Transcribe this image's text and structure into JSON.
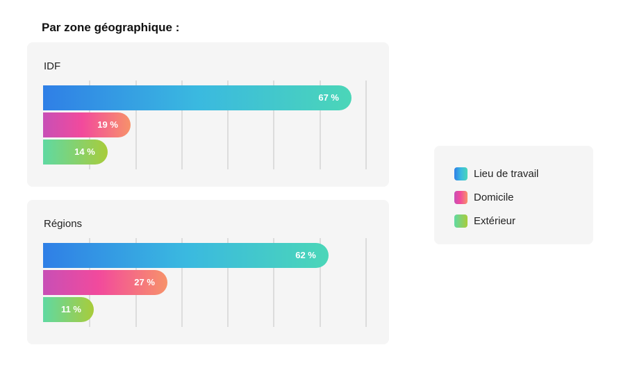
{
  "title": "Par zone géographique :",
  "legend": {
    "items": [
      {
        "label": "Lieu de travail"
      },
      {
        "label": "Domicile"
      },
      {
        "label": "Extérieur"
      }
    ]
  },
  "chart_data": [
    {
      "type": "bar",
      "orientation": "horizontal",
      "title": "IDF",
      "categories": [
        "Lieu de travail",
        "Domicile",
        "Extérieur"
      ],
      "values": [
        67,
        19,
        14
      ],
      "value_labels": [
        "67 %",
        "19 %",
        "14 %"
      ],
      "xlim": [
        0,
        70
      ],
      "grid": true
    },
    {
      "type": "bar",
      "orientation": "horizontal",
      "title": "Régions",
      "categories": [
        "Lieu de travail",
        "Domicile",
        "Extérieur"
      ],
      "values": [
        62,
        27,
        11
      ],
      "value_labels": [
        "62 %",
        "27 %",
        "11 %"
      ],
      "xlim": [
        0,
        70
      ],
      "grid": true
    }
  ]
}
